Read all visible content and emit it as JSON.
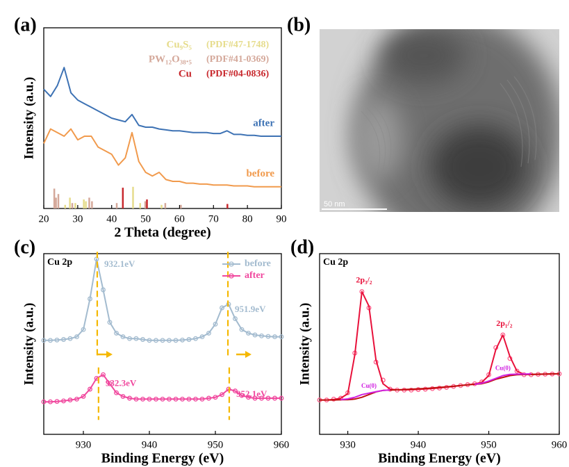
{
  "chart_data": [
    {
      "type": "line",
      "label": "(a)",
      "xlabel": "2 Theta (degree)",
      "ylabel": "Intensity (a.u.)",
      "x": [
        20,
        22,
        24,
        26,
        28,
        30,
        32,
        34,
        36,
        38,
        40,
        42,
        44,
        46,
        48,
        50,
        52,
        54,
        56,
        58,
        60,
        62,
        64,
        66,
        68,
        70,
        72,
        74,
        76,
        78,
        80,
        82,
        84,
        86,
        88,
        90
      ],
      "xlim": [
        20,
        90
      ],
      "xticks": [
        20,
        30,
        40,
        50,
        60,
        70,
        80,
        90
      ],
      "ylim": [
        0,
        100
      ],
      "series": [
        {
          "name": "after",
          "color": "#3d72b4",
          "values": [
            66,
            62,
            68,
            78,
            64,
            60,
            58,
            56,
            54,
            52,
            50,
            49,
            48,
            52,
            46,
            45,
            45,
            44,
            43.5,
            43,
            43,
            42.5,
            42,
            42,
            42,
            41.5,
            41.5,
            43,
            41,
            41,
            40.5,
            40.5,
            40,
            40,
            40,
            40
          ]
        },
        {
          "name": "before",
          "color": "#f19a4c",
          "values": [
            36,
            44,
            42,
            40,
            44,
            38,
            40,
            40,
            34,
            32,
            30,
            24,
            28,
            42,
            26,
            20,
            18,
            20,
            16,
            15,
            15,
            14,
            14,
            13.5,
            13.5,
            13,
            13,
            13,
            12.5,
            12.5,
            12.5,
            12,
            12,
            12,
            12,
            12
          ]
        }
      ],
      "references": [
        {
          "name": "Cu₉S₅",
          "card": "(PDF#47-1748)",
          "color": "#e6dc8c",
          "x": [
            26.3,
            27.7,
            29.3,
            31.8,
            32.4,
            46.3,
            48.4,
            54.7
          ],
          "values": [
            2,
            6,
            3,
            5,
            4,
            12,
            3,
            2
          ]
        },
        {
          "name": "PW₁₂O₃₈.₅",
          "card": "(PDF#41-0369)",
          "color": "#d4a89a",
          "x": [
            23.1,
            23.6,
            24.3,
            28.4,
            33.4,
            34.2,
            41.5,
            49.9,
            55.8,
            60.4
          ],
          "values": [
            11,
            6,
            8,
            3,
            6,
            4,
            3,
            4,
            3,
            2
          ]
        },
        {
          "name": "Cu",
          "card": "(PDF#04-0836)",
          "color": "#c8282d",
          "x": [
            43.3,
            50.4,
            74.1
          ],
          "values": [
            11.5,
            5,
            2.5
          ]
        }
      ]
    },
    {
      "type": "image",
      "label": "(b)",
      "scale_bar": "50 nm"
    },
    {
      "type": "line",
      "label": "(c)",
      "annotation": "Cu 2p",
      "xlabel": "Binding Energy (eV)",
      "ylabel": "Intensity (a.u.)",
      "x": [
        924,
        925,
        926,
        927,
        928,
        929,
        930,
        931,
        932,
        933,
        934,
        935,
        936,
        937,
        938,
        939,
        940,
        941,
        942,
        943,
        944,
        945,
        946,
        947,
        948,
        949,
        950,
        951,
        952,
        953,
        954,
        955,
        956,
        957,
        958,
        959,
        960
      ],
      "xlim": [
        924,
        960
      ],
      "xticks": [
        930,
        940,
        950,
        960
      ],
      "ylim": [
        0,
        100
      ],
      "legend": "upper right",
      "peak_lines": true,
      "series": [
        {
          "name": "before",
          "color": "#a3bbcf",
          "marker": "circle",
          "values": [
            52,
            52,
            52.2,
            52.5,
            53,
            54,
            58,
            75,
            97,
            80,
            62,
            56,
            54,
            53,
            53,
            52.5,
            52,
            52,
            52,
            52,
            52,
            52.2,
            52.5,
            53,
            54,
            56,
            61,
            70,
            72,
            64,
            58,
            56,
            55,
            54.5,
            54.2,
            54,
            54
          ],
          "peaks": [
            {
              "value": 932.1,
              "label": "932.1eV"
            },
            {
              "value": 951.9,
              "label": "951.9eV"
            }
          ]
        },
        {
          "name": "after",
          "color": "#f0489e",
          "marker": "circle",
          "values": [
            18,
            18,
            18.2,
            18.5,
            19,
            19.5,
            21,
            25,
            31,
            33,
            28,
            23,
            21,
            20,
            19.5,
            19.5,
            19.5,
            19.5,
            19.5,
            19.5,
            19.5,
            19.5,
            19.5,
            19.5,
            19.5,
            20,
            20.5,
            22,
            25,
            24,
            21.5,
            20.5,
            20,
            20,
            20,
            20,
            20
          ],
          "peaks": [
            {
              "value": 932.3,
              "label": "932.3eV"
            },
            {
              "value": 952.1,
              "label": "952.1eV"
            }
          ]
        }
      ]
    },
    {
      "type": "line",
      "label": "(d)",
      "annotation": "Cu 2p",
      "xlabel": "Binding Energy (eV)",
      "ylabel": "Intensity (a.u.)",
      "x": [
        926,
        927,
        928,
        929,
        930,
        931,
        932,
        933,
        934,
        935,
        936,
        937,
        938,
        939,
        940,
        941,
        942,
        943,
        944,
        945,
        946,
        947,
        948,
        949,
        950,
        951,
        952,
        953,
        954,
        955,
        956,
        957,
        958,
        959,
        960
      ],
      "xlim": [
        926,
        960
      ],
      "xticks": [
        930,
        940,
        950,
        960
      ],
      "ylim": [
        0,
        100
      ],
      "series": [
        {
          "color": "#ff5c8a",
          "marker": "circle",
          "line": false,
          "values": [
            19,
            19,
            19.5,
            20,
            23,
            45,
            79,
            70,
            40,
            30,
            25,
            24.5,
            24.5,
            24.5,
            24.8,
            25,
            25.3,
            25.6,
            26,
            26.5,
            27,
            27.5,
            28,
            29,
            33,
            48,
            55,
            42,
            35,
            33,
            33,
            33.2,
            33.3,
            33.4,
            33.5
          ],
          "peaks": [
            {
              "value": 932.3,
              "label": "2p₃/₂"
            },
            {
              "value": 952.2,
              "label": "2p₁/₂"
            }
          ]
        },
        {
          "color": "#e8103a",
          "values": [
            19,
            19,
            19.3,
            20,
            22.5,
            44,
            79,
            71,
            41,
            28,
            25,
            24.6,
            24.6,
            24.7,
            24.9,
            25.1,
            25.4,
            25.7,
            26.1,
            26.5,
            27,
            27.4,
            27.9,
            28.8,
            32.5,
            47,
            55,
            43,
            35,
            33.2,
            33.1,
            33.2,
            33.3,
            33.4,
            33.5
          ]
        },
        {
          "color": "#c01010",
          "values": [
            19,
            19,
            19,
            19.1,
            19.2,
            19.5,
            20.5,
            22,
            23.5,
            24.3,
            24.5,
            24.6,
            24.8,
            25,
            25.2,
            25.4,
            25.7,
            26,
            26.3,
            26.6,
            27,
            27.4,
            27.7,
            28,
            29,
            30.5,
            31.5,
            32.5,
            33,
            33.1,
            33.2,
            33.3,
            33.4,
            33.5,
            33.5
          ]
        },
        {
          "name": "Cu(0)",
          "color": "#d020e0",
          "x": [
            929,
            930,
            931,
            932,
            933,
            934,
            935,
            936
          ],
          "values": [
            19.2,
            19.6,
            20.5,
            22,
            22.8,
            23.6,
            24.3,
            24.5
          ]
        },
        {
          "name": "Cu(0)",
          "color": "#d020e0",
          "x": [
            948,
            949,
            950,
            951,
            952,
            953,
            954,
            955,
            956
          ],
          "values": [
            27.7,
            28.3,
            29.5,
            31,
            32.5,
            33.2,
            33.3,
            33.4,
            33.5
          ]
        }
      ]
    }
  ]
}
